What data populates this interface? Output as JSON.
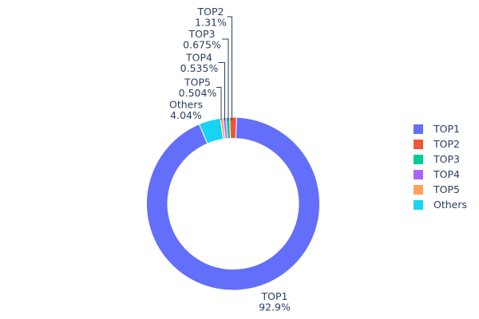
{
  "chart_data": {
    "type": "pie",
    "subtype": "donut",
    "hole_ratio": 0.755,
    "labels": [
      "TOP1",
      "TOP2",
      "TOP3",
      "TOP4",
      "TOP5",
      "Others"
    ],
    "values": [
      92.9,
      1.31,
      0.675,
      0.535,
      0.504,
      4.04
    ],
    "percent_labels": [
      "92.9%",
      "1.31%",
      "0.675%",
      "0.535%",
      "0.504%",
      "4.04%"
    ],
    "colors": [
      "#636efa",
      "#ef553b",
      "#00cc96",
      "#ab63fa",
      "#ffa15a",
      "#19d3f3"
    ],
    "title": "",
    "legend_position": "right",
    "label_placement": "outside with leader lines",
    "text_color": "#2a3f5f",
    "leader_line_color": "#2a3f5f",
    "slice_border_color": "#ffffff",
    "background_color": "#ffffff"
  },
  "legend": {
    "entries": [
      "TOP1",
      "TOP2",
      "TOP3",
      "TOP4",
      "TOP5",
      "Others"
    ]
  }
}
